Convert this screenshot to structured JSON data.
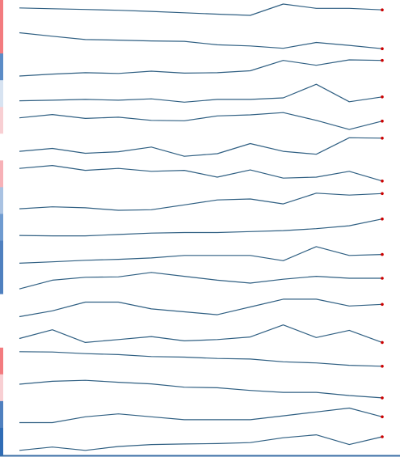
{
  "chart_data": {
    "type": "line",
    "title": "",
    "xlabel": "",
    "ylabel": "",
    "grid": false,
    "legend": "none",
    "x": [
      0,
      1,
      2,
      3,
      4,
      5,
      6,
      7,
      8,
      9,
      10,
      11
    ],
    "line_color": "#2f5f82",
    "end_marker_color": "#cc0000",
    "axis_color": "#3a6ea5",
    "series": [
      {
        "band_color": "#f37b7f",
        "values": [
          0.8,
          0.76,
          0.72,
          0.68,
          0.62,
          0.55,
          0.48,
          0.42,
          1.0,
          0.78,
          0.78,
          0.7
        ]
      },
      {
        "band_color": "#f37b7f",
        "values": [
          0.9,
          0.72,
          0.55,
          0.52,
          0.48,
          0.46,
          0.28,
          0.22,
          0.1,
          0.4,
          0.25,
          0.08
        ]
      },
      {
        "band_color": "#5b8cc7",
        "values": [
          0.05,
          0.15,
          0.22,
          0.18,
          0.3,
          0.2,
          0.22,
          0.32,
          0.85,
          0.6,
          0.88,
          0.85
        ]
      },
      {
        "band_color": "#d7e3f1",
        "values": [
          0.15,
          0.18,
          0.22,
          0.18,
          0.25,
          0.08,
          0.22,
          0.22,
          0.3,
          1.0,
          0.1,
          0.35
        ]
      },
      {
        "band_color": "#f8cfd3",
        "values": [
          0.65,
          0.82,
          0.62,
          0.68,
          0.52,
          0.5,
          0.75,
          0.8,
          0.92,
          0.52,
          0.05,
          0.48
        ]
      },
      {
        "band_color": "#ffffff",
        "values": [
          0.3,
          0.45,
          0.2,
          0.28,
          0.52,
          0.05,
          0.18,
          0.7,
          0.3,
          0.15,
          1.0,
          0.98
        ]
      },
      {
        "band_color": "#f7b1b7",
        "values": [
          0.8,
          0.95,
          0.7,
          0.8,
          0.65,
          0.7,
          0.35,
          0.72,
          0.3,
          0.35,
          0.65,
          0.15
        ]
      },
      {
        "band_color": "#a9c2e2",
        "values": [
          0.1,
          0.2,
          0.15,
          0.02,
          0.05,
          0.3,
          0.55,
          0.6,
          0.35,
          0.9,
          0.8,
          0.88
        ]
      },
      {
        "band_color": "#6f9bd0",
        "values": [
          0.1,
          0.08,
          0.08,
          0.15,
          0.22,
          0.25,
          0.25,
          0.3,
          0.35,
          0.45,
          0.6,
          0.95
        ]
      },
      {
        "band_color": "#4f80bf",
        "values": [
          0.05,
          0.12,
          0.2,
          0.25,
          0.32,
          0.45,
          0.45,
          0.45,
          0.18,
          0.9,
          0.45,
          0.5
        ]
      },
      {
        "band_color": "#4f80bf",
        "values": [
          0.1,
          0.55,
          0.7,
          0.72,
          0.95,
          0.75,
          0.55,
          0.4,
          0.6,
          0.75,
          0.65,
          0.65
        ]
      },
      {
        "band_color": "#ffffff",
        "values": [
          0.05,
          0.35,
          0.8,
          0.8,
          0.45,
          0.3,
          0.15,
          0.55,
          0.95,
          0.95,
          0.6,
          0.68
        ]
      },
      {
        "band_color": "#ffffff",
        "values": [
          0.3,
          0.75,
          0.1,
          0.25,
          0.4,
          0.18,
          0.25,
          0.38,
          1.0,
          0.35,
          0.72,
          0.1
        ]
      },
      {
        "band_color": "#f37b7f",
        "values": [
          1.0,
          0.98,
          0.9,
          0.85,
          0.75,
          0.72,
          0.65,
          0.62,
          0.48,
          0.42,
          0.3,
          0.25
        ]
      },
      {
        "band_color": "#f8cfd3",
        "values": [
          0.7,
          0.85,
          0.9,
          0.8,
          0.72,
          0.55,
          0.52,
          0.38,
          0.28,
          0.28,
          0.12,
          0.0
        ]
      },
      {
        "band_color": "#4f80bf",
        "values": [
          0.1,
          0.1,
          0.4,
          0.55,
          0.4,
          0.25,
          0.25,
          0.25,
          0.45,
          0.65,
          0.85,
          0.4
        ]
      },
      {
        "band_color": "#2f6cb5",
        "values": [
          0.05,
          0.22,
          0.05,
          0.25,
          0.35,
          0.38,
          0.4,
          0.45,
          0.7,
          0.85,
          0.35,
          0.75
        ]
      }
    ]
  }
}
